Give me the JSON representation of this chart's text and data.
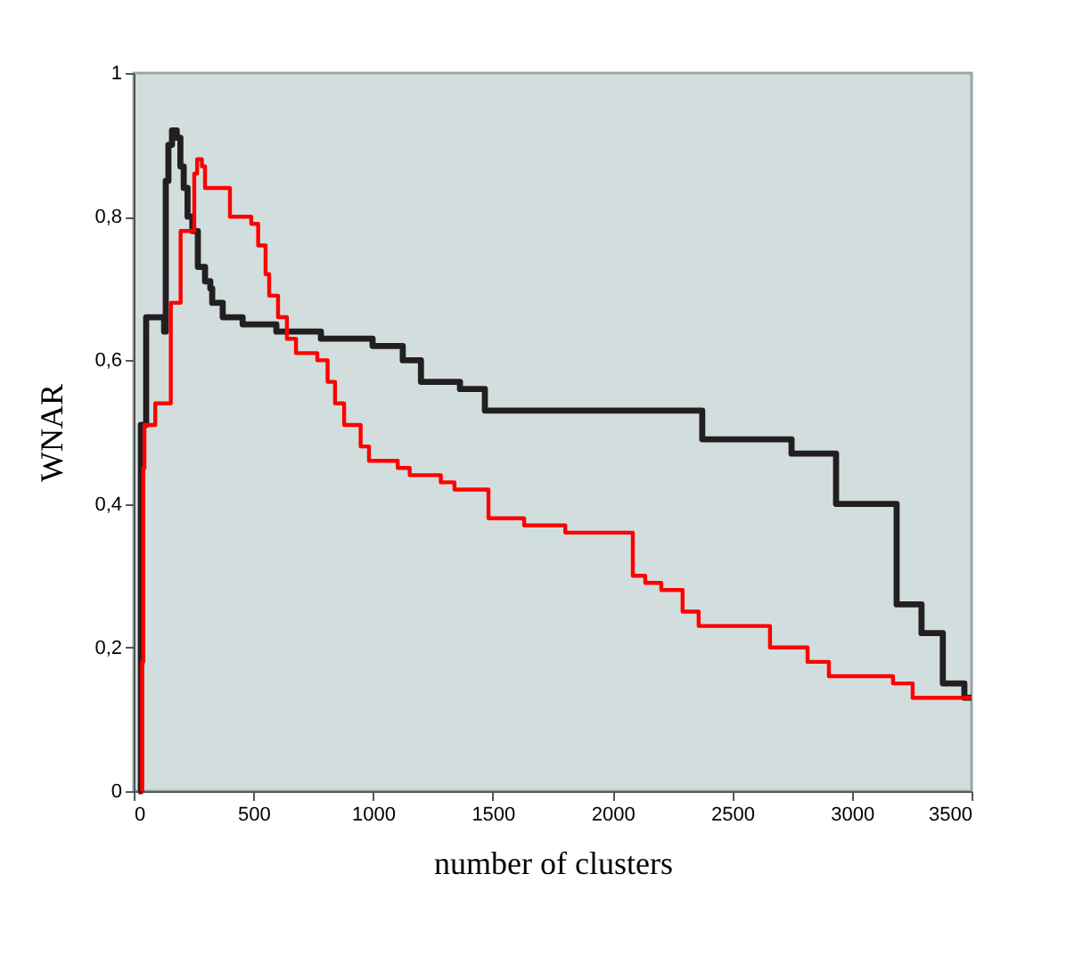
{
  "chart_data": {
    "type": "step",
    "xlabel": "number of clusters",
    "ylabel": "WNAR",
    "xlim": [
      0,
      3500
    ],
    "xticks": [
      0,
      500,
      1000,
      1500,
      2000,
      2500,
      3000,
      3500
    ],
    "ylim": [
      0,
      1
    ],
    "yticks": [
      0,
      {
        "value": 0.2,
        "label": "0,2"
      },
      {
        "value": 0.4,
        "label": "0,4"
      },
      {
        "value": 0.6,
        "label": "0,6"
      },
      {
        "value": 0.8,
        "label": "0,8"
      },
      1
    ],
    "grid": false,
    "line_style": "solid",
    "marker": "none",
    "series": [
      {
        "color": "#231f20",
        "x": [
          20,
          30,
          52,
          127,
          134,
          145,
          160,
          180,
          195,
          209,
          225,
          245,
          268,
          298,
          320,
          328,
          372,
          455,
          596,
          782,
          998,
          1124,
          1200,
          1363,
          1467,
          2375,
          2748,
          2934,
          3187,
          3291,
          3380,
          3470,
          3500
        ],
        "values": [
          0,
          0.51,
          0.66,
          0.64,
          0.85,
          0.9,
          0.92,
          0.91,
          0.87,
          0.84,
          0.8,
          0.78,
          0.73,
          0.71,
          0.7,
          0.68,
          0.66,
          0.65,
          0.64,
          0.63,
          0.62,
          0.6,
          0.57,
          0.56,
          0.53,
          0.49,
          0.47,
          0.4,
          0.26,
          0.22,
          0.15,
          0.13,
          0.13
        ]
      },
      {
        "color": "#ff0000",
        "x": [
          30,
          35,
          40,
          45,
          90,
          155,
          196,
          253,
          265,
          285,
          298,
          402,
          491,
          520,
          551,
          566,
          603,
          640,
          678,
          767,
          810,
          841,
          879,
          948,
          983,
          1103,
          1153,
          1283,
          1340,
          1482,
          1631,
          1803,
          2085,
          2137,
          2204,
          2293,
          2360,
          2658,
          2815,
          2904,
          3172,
          3254,
          3500
        ],
        "values": [
          0,
          0.18,
          0.45,
          0.51,
          0.54,
          0.68,
          0.78,
          0.86,
          0.88,
          0.87,
          0.84,
          0.8,
          0.79,
          0.76,
          0.72,
          0.69,
          0.66,
          0.63,
          0.61,
          0.6,
          0.57,
          0.54,
          0.51,
          0.48,
          0.46,
          0.45,
          0.44,
          0.43,
          0.42,
          0.38,
          0.37,
          0.36,
          0.3,
          0.29,
          0.28,
          0.25,
          0.23,
          0.2,
          0.18,
          0.16,
          0.15,
          0.13,
          0.13
        ]
      }
    ]
  }
}
